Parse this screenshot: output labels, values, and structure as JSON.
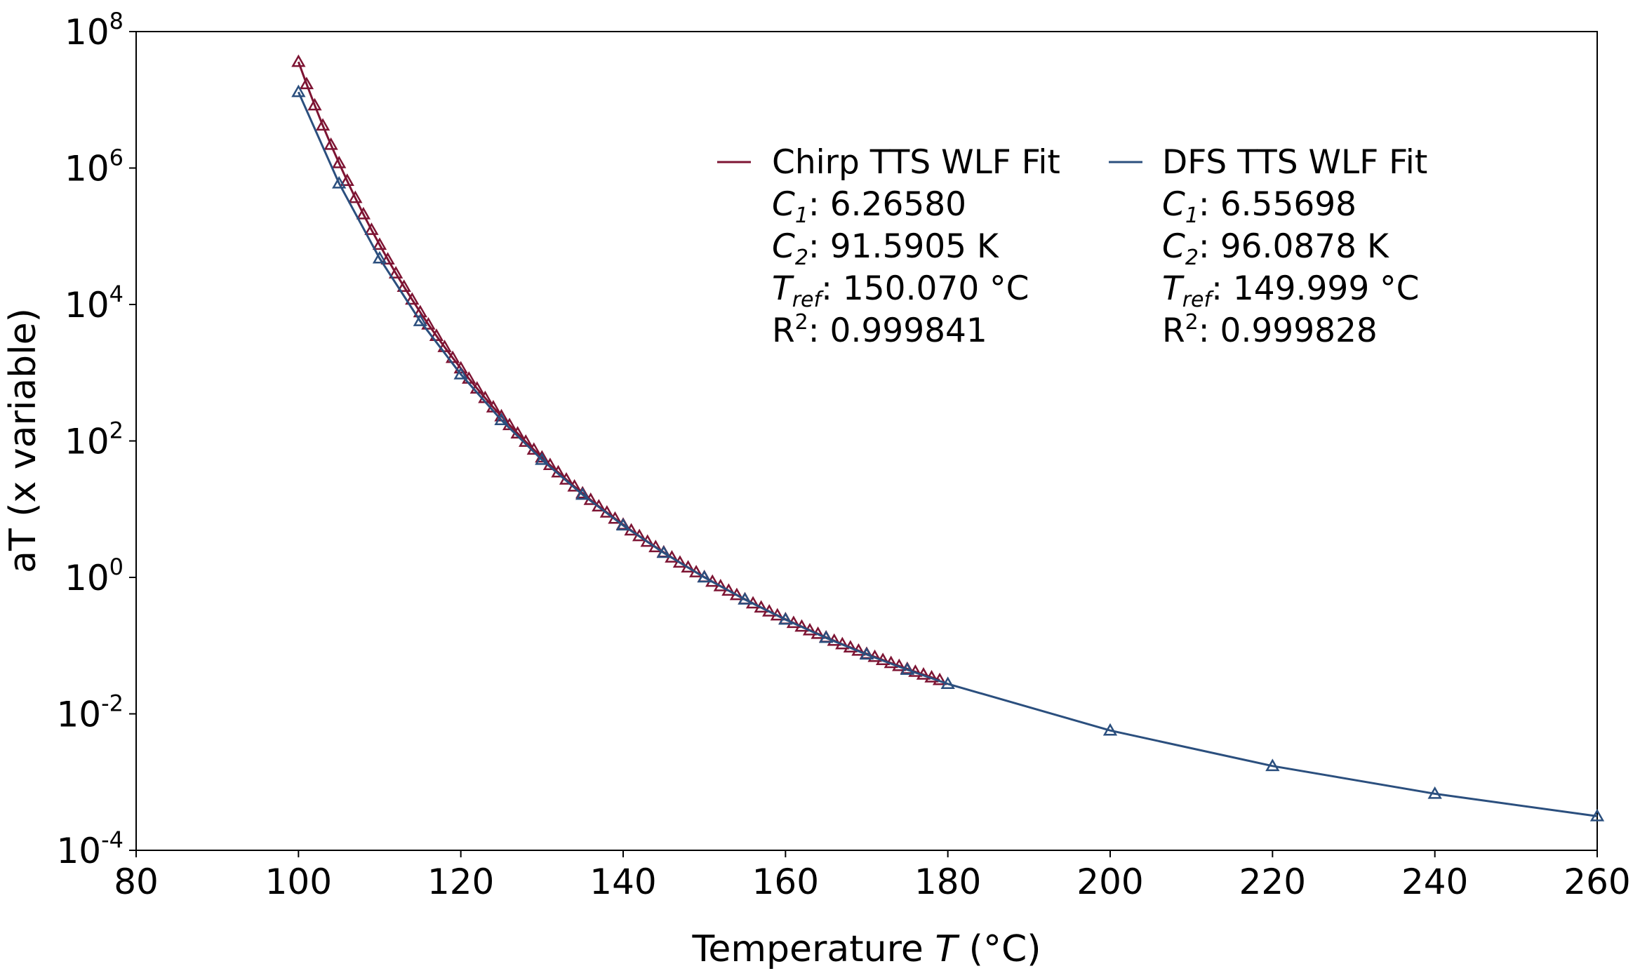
{
  "chart_data": {
    "type": "line",
    "xlabel": {
      "prefix": "Temperature ",
      "var": "T",
      "suffix": " (°C)"
    },
    "ylabel": "aT (x variable)",
    "xlim": [
      80,
      260
    ],
    "ylim": [
      0.0001,
      100000000
    ],
    "yscale": "log",
    "grid": false,
    "legend_placement": "top-right",
    "xticks": [
      "80",
      "100",
      "120",
      "140",
      "160",
      "180",
      "200",
      "220",
      "240",
      "260"
    ],
    "yticks": [
      {
        "base": "10",
        "exp": "8"
      },
      {
        "base": "10",
        "exp": "6"
      },
      {
        "base": "10",
        "exp": "4"
      },
      {
        "base": "10",
        "exp": "2"
      },
      {
        "base": "10",
        "exp": "0"
      },
      {
        "base": "10",
        "exp": "-2"
      },
      {
        "base": "10",
        "exp": "-4"
      }
    ],
    "series": [
      {
        "name": "Chirp TTS WLF Fit",
        "color": "#7d1433",
        "marker": "open-triangle",
        "params": {
          "c1": "6.26580",
          "c2": "91.5905 K",
          "tref": "150.070 °C",
          "r2": "0.999841"
        },
        "x": [
          100,
          101,
          102,
          103,
          104,
          105,
          106,
          107,
          108,
          109,
          110,
          111,
          112,
          113,
          114,
          115,
          116,
          117,
          118,
          119,
          120,
          121,
          122,
          123,
          124,
          125,
          126,
          127,
          128,
          129,
          130,
          131,
          132,
          133,
          134,
          135,
          136,
          137,
          138,
          139,
          140,
          141,
          142,
          143,
          144,
          145,
          146,
          147,
          148,
          149,
          150,
          151,
          152,
          153,
          154,
          155,
          156,
          157,
          158,
          159,
          160,
          161,
          162,
          163,
          164,
          165,
          166,
          167,
          168,
          169,
          170,
          171,
          172,
          173,
          174,
          175,
          176,
          177,
          178,
          179
        ],
        "y": [
          36000000.0,
          17000000.0,
          8300000.0,
          4200000.0,
          2190000.0,
          1180000.0,
          650000.0,
          365000.0,
          210000.0,
          124000.0,
          75000.0,
          45800.0,
          28600.0,
          18200.0,
          11800.0,
          7700,
          5100,
          3470,
          2380,
          1650,
          1160,
          819,
          587,
          426,
          311,
          230,
          171,
          129,
          97.5,
          74.5,
          57.3,
          44.4,
          34.7,
          27.2,
          21.5,
          17.1,
          13.7,
          11.0,
          8.93,
          7.27,
          5.94,
          4.88,
          4.03,
          3.34,
          2.78,
          2.33,
          1.96,
          1.65,
          1.4,
          1.19,
          1.01,
          0.865,
          0.743,
          0.64,
          0.552,
          0.479,
          0.416,
          0.362,
          0.317,
          0.278,
          0.244,
          0.215,
          0.19,
          0.168,
          0.149,
          0.132,
          0.118,
          0.105,
          0.0942,
          0.0845,
          0.0759,
          0.0684,
          0.0616,
          0.0556,
          0.0504,
          0.0456,
          0.0414,
          0.0377,
          0.0343,
          0.0313
        ]
      },
      {
        "name": "DFS TTS WLF Fit",
        "color": "#2b4f7e",
        "marker": "open-triangle",
        "params": {
          "c1": "6.55698",
          "c2": "96.0878 K",
          "tref": "149.999 °C",
          "r2": "0.999828"
        },
        "x": [
          100,
          105,
          110,
          115,
          120,
          125,
          130,
          135,
          140,
          145,
          150,
          155,
          160,
          165,
          170,
          175,
          180,
          200,
          220,
          240,
          260
        ],
        "y": [
          13000000.0,
          596000.0,
          47400.0,
          5710,
          947,
          202,
          52.9,
          16.3,
          5.78,
          2.29,
          1,
          0.474,
          0.241,
          0.13,
          0.0742,
          0.0443,
          0.0275,
          0.0057,
          0.00172,
          0.000674,
          0.000316
        ]
      }
    ],
    "legend_labels": {
      "c": "C",
      "sub1": "1",
      "sub2": "2",
      "t": "T",
      "ref": "ref",
      "r": "R",
      "sq": "2",
      "sep": ": "
    }
  }
}
